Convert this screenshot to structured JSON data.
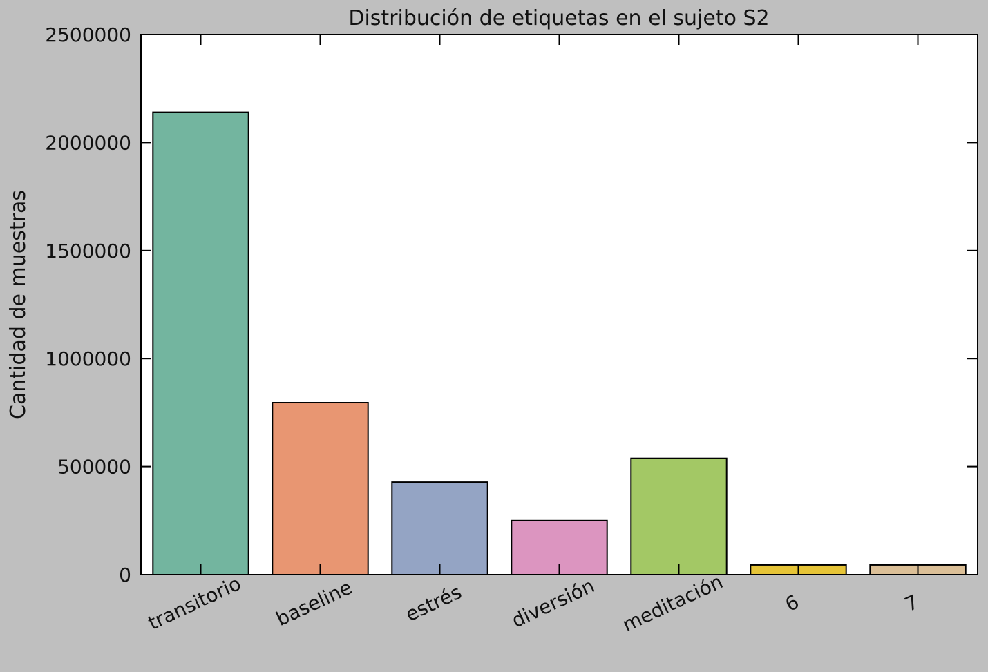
{
  "chart_data": {
    "type": "bar",
    "title": "Distribución de etiquetas en el sujeto S2",
    "xlabel": "",
    "ylabel": "Cantidad de muestras",
    "categories": [
      "transitorio",
      "baseline",
      "estrés",
      "diversión",
      "meditación",
      "6",
      "7"
    ],
    "values": [
      2140000,
      796000,
      428000,
      250000,
      538000,
      45000,
      45000
    ],
    "colors": [
      "#73b59f",
      "#e89672",
      "#94a4c4",
      "#dc95c0",
      "#a3c865",
      "#e6c437",
      "#dbbf97"
    ],
    "ylim": [
      0,
      2500000
    ],
    "yticks": [
      0,
      500000,
      1000000,
      1500000,
      2000000,
      2500000
    ],
    "ytick_labels": [
      "0",
      "500000",
      "1000000",
      "1500000",
      "2000000",
      "2500000"
    ],
    "grid": false,
    "legend": "none"
  }
}
